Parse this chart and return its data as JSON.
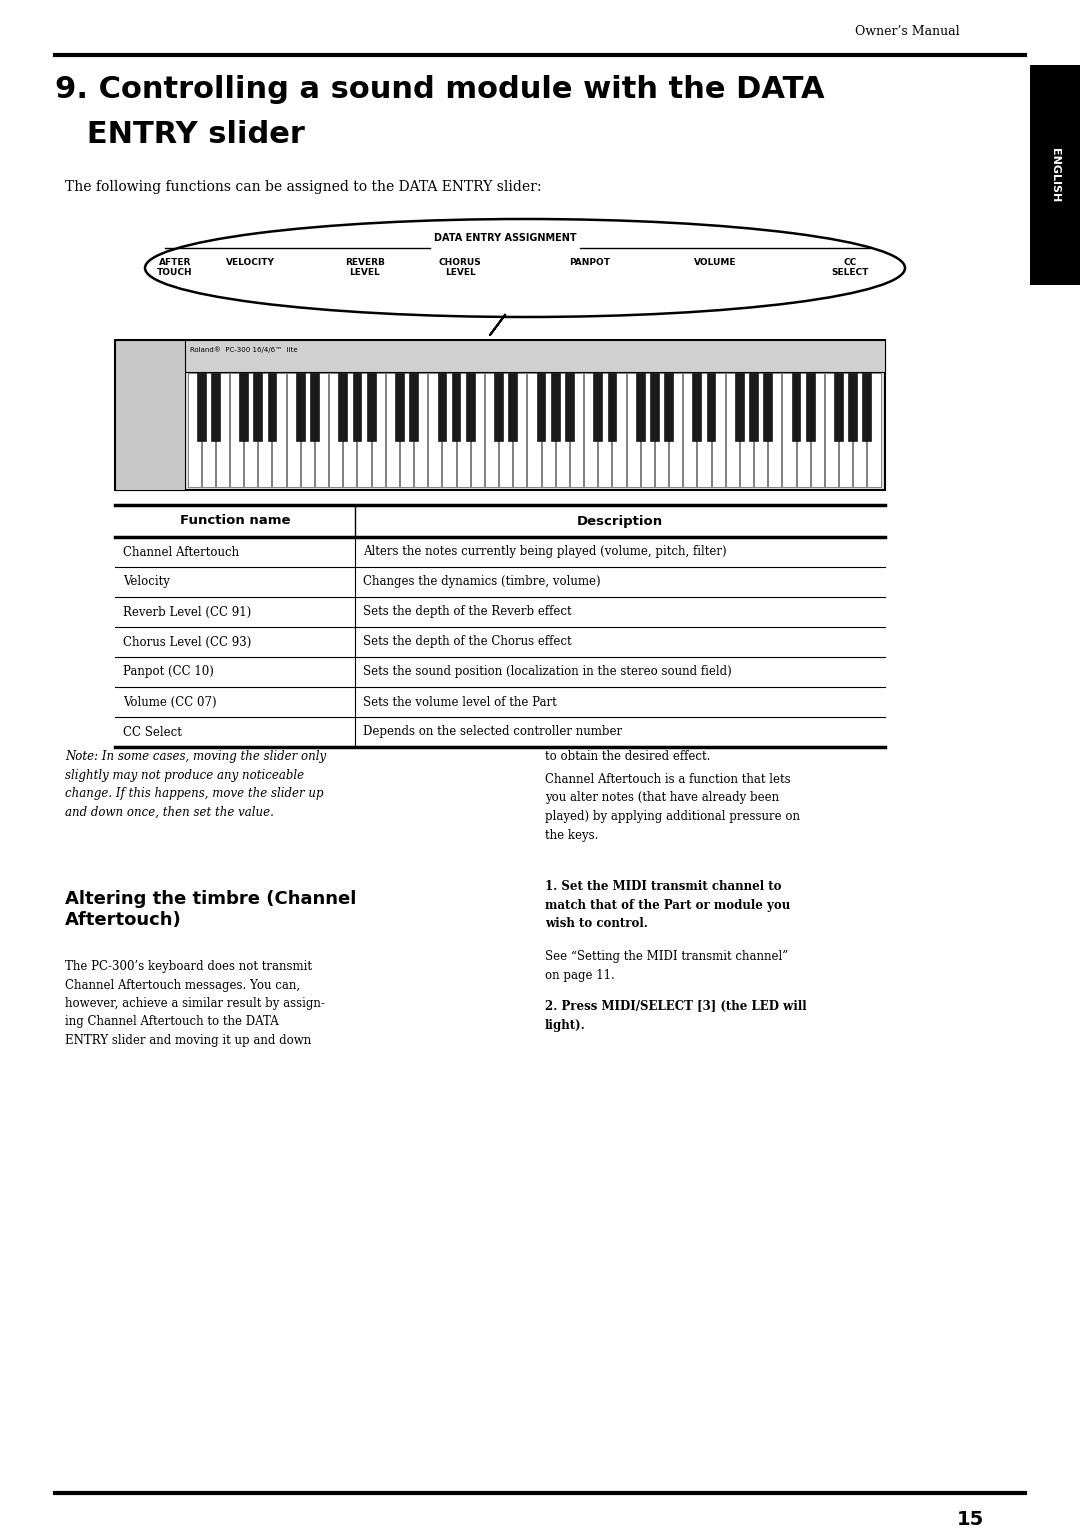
{
  "bg_color": "#ffffff",
  "page_width": 10.8,
  "page_height": 15.33,
  "header_text": "Owner’s Manual",
  "chapter_title_line1": "9. Controlling a sound module with the DATA",
  "chapter_title_line2": "   ENTRY slider",
  "intro_text": "The following functions can be assigned to the DATA ENTRY slider:",
  "english_tab_text": "ENGLISH",
  "table_header": [
    "Function name",
    "Description"
  ],
  "table_rows": [
    [
      "Channel Aftertouch",
      "Alters the notes currently being played (volume, pitch, filter)"
    ],
    [
      "Velocity",
      "Changes the dynamics (timbre, volume)"
    ],
    [
      "Reverb Level (CC 91)",
      "Sets the depth of the Reverb effect"
    ],
    [
      "Chorus Level (CC 93)",
      "Sets the depth of the Chorus effect"
    ],
    [
      "Panpot (CC 10)",
      "Sets the sound position (localization in the stereo sound field)"
    ],
    [
      "Volume (CC 07)",
      "Sets the volume level of the Part"
    ],
    [
      "CC Select",
      "Depends on the selected controller number"
    ]
  ],
  "note_text": "Note: In some cases, moving the slider only\nslightly may not produce any noticeable\nchange. If this happens, move the slider up\nand down once, then set the value.",
  "right_col_text1": "to obtain the desired effect.",
  "right_col_text2": "Channel Aftertouch is a function that lets\nyou alter notes (that have already been\nplayed) by applying additional pressure on\nthe keys.",
  "right_col_bold1": "1. Set the MIDI transmit channel to\nmatch that of the Part or module you\nwish to control.",
  "right_col_text3": "See “Setting the MIDI transmit channel”\non page 11.",
  "right_col_bold2": "2. Press MIDI/SELECT [3] (the LED will\nlight).",
  "section2_title": "Altering the timbre (Channel\nAftertouch)",
  "section2_body": "The PC-300’s keyboard does not transmit\nChannel Aftertouch messages. You can,\nhowever, achieve a similar result by assign-\ning Channel Aftertouch to the DATA\nENTRY slider and moving it up and down",
  "page_number": "15"
}
